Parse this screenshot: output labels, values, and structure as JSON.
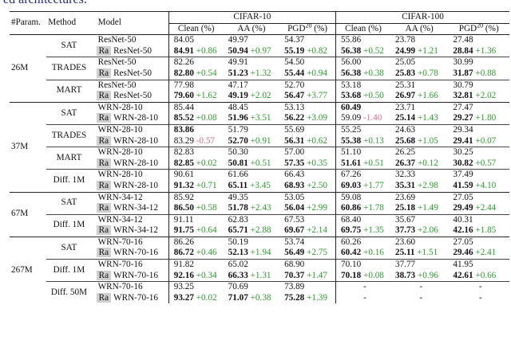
{
  "caption_fragment": "ed architectures.",
  "header": {
    "param": "#Param.",
    "method": "Method",
    "model": "Model",
    "datasets": [
      "CIFAR-10",
      "CIFAR-100"
    ],
    "metrics": [
      {
        "name": "Clean (%)"
      },
      {
        "name": "AA (%)"
      },
      {
        "name": "PGD",
        "sup": "20",
        "unit": "(%)"
      }
    ]
  },
  "ra_tag": "Ra",
  "groups": [
    {
      "param": "26M",
      "methods": [
        {
          "name": "SAT",
          "model": "ResNet-50",
          "base": [
            {
              "v": "84.05"
            },
            {
              "v": "49.97"
            },
            {
              "v": "54.37"
            },
            {
              "v": "55.86"
            },
            {
              "v": "23.78"
            },
            {
              "v": "27.48"
            }
          ],
          "ra": [
            {
              "v": "84.91",
              "d": "+0.86",
              "bold": true
            },
            {
              "v": "50.94",
              "d": "+0.97",
              "bold": true
            },
            {
              "v": "55.19",
              "d": "+0.82",
              "bold": true
            },
            {
              "v": "56.38",
              "d": "+0.52",
              "bold": true
            },
            {
              "v": "24.99",
              "d": "+1.21",
              "bold": true
            },
            {
              "v": "28.84",
              "d": "+1.36",
              "bold": true
            }
          ]
        },
        {
          "name": "TRADES",
          "model": "ResNet-50",
          "base": [
            {
              "v": "82.26"
            },
            {
              "v": "49.91"
            },
            {
              "v": "54.50"
            },
            {
              "v": "56.00"
            },
            {
              "v": "25.05"
            },
            {
              "v": "30.99"
            }
          ],
          "ra": [
            {
              "v": "82.80",
              "d": "+0.54",
              "bold": true
            },
            {
              "v": "51.23",
              "d": "+1.32",
              "bold": true
            },
            {
              "v": "55.44",
              "d": "+0.94",
              "bold": true
            },
            {
              "v": "56.38",
              "d": "+0.38",
              "bold": true
            },
            {
              "v": "25.83",
              "d": "+0.78",
              "bold": true
            },
            {
              "v": "31.87",
              "d": "+0.88",
              "bold": true
            }
          ]
        },
        {
          "name": "MART",
          "model": "ResNet-50",
          "base": [
            {
              "v": "77.98"
            },
            {
              "v": "47.17"
            },
            {
              "v": "52.70"
            },
            {
              "v": "53.18"
            },
            {
              "v": "25.31"
            },
            {
              "v": "30.79"
            }
          ],
          "ra": [
            {
              "v": "79.60",
              "d": "+1.62",
              "bold": true
            },
            {
              "v": "49.19",
              "d": "+2.02",
              "bold": true
            },
            {
              "v": "56.47",
              "d": "+3.77",
              "bold": true
            },
            {
              "v": "53.68",
              "d": "+0.50",
              "bold": true
            },
            {
              "v": "26.97",
              "d": "+1.66",
              "bold": true
            },
            {
              "v": "32.81",
              "d": "+2.02",
              "bold": true
            }
          ]
        }
      ]
    },
    {
      "param": "37M",
      "methods": [
        {
          "name": "SAT",
          "model": "WRN-28-10",
          "base": [
            {
              "v": "85.44"
            },
            {
              "v": "48.45"
            },
            {
              "v": "53.13"
            },
            {
              "v": "60.49",
              "bold": true
            },
            {
              "v": "23.71"
            },
            {
              "v": "27.47"
            }
          ],
          "ra": [
            {
              "v": "85.52",
              "d": "+0.08",
              "bold": true
            },
            {
              "v": "51.96",
              "d": "+3.51",
              "bold": true
            },
            {
              "v": "56.22",
              "d": "+3.09",
              "bold": true
            },
            {
              "v": "59.09",
              "d": "-1.40"
            },
            {
              "v": "25.14",
              "d": "+1.43",
              "bold": true
            },
            {
              "v": "29.27",
              "d": "+1.80",
              "bold": true
            }
          ]
        },
        {
          "name": "TRADES",
          "model": "WRN-28-10",
          "base": [
            {
              "v": "83.86",
              "bold": true
            },
            {
              "v": "51.79"
            },
            {
              "v": "55.69"
            },
            {
              "v": "55.25"
            },
            {
              "v": "24.63"
            },
            {
              "v": "29.34"
            }
          ],
          "ra": [
            {
              "v": "83.29",
              "d": "-0.57"
            },
            {
              "v": "52.70",
              "d": "+0.91",
              "bold": true
            },
            {
              "v": "56.31",
              "d": "+0.62",
              "bold": true
            },
            {
              "v": "55.38",
              "d": "+0.13",
              "bold": true
            },
            {
              "v": "25.68",
              "d": "+1.05",
              "bold": true
            },
            {
              "v": "29.41",
              "d": "+0.07",
              "bold": true
            }
          ]
        },
        {
          "name": "MART",
          "model": "WRN-28-10",
          "base": [
            {
              "v": "82.83"
            },
            {
              "v": "50.30"
            },
            {
              "v": "57.00"
            },
            {
              "v": "51.10"
            },
            {
              "v": "26.25"
            },
            {
              "v": "30.25"
            }
          ],
          "ra": [
            {
              "v": "82.85",
              "d": "+0.02",
              "bold": true
            },
            {
              "v": "50.81",
              "d": "+0.51",
              "bold": true
            },
            {
              "v": "57.35",
              "d": "+0.35",
              "bold": true
            },
            {
              "v": "51.61",
              "d": "+0.51",
              "bold": true
            },
            {
              "v": "26.37",
              "d": "+0.12",
              "bold": true
            },
            {
              "v": "30.82",
              "d": "+0.57",
              "bold": true
            }
          ]
        },
        {
          "name": "Diff. 1M",
          "model": "WRN-28-10",
          "base": [
            {
              "v": "90.61"
            },
            {
              "v": "61.66"
            },
            {
              "v": "66.43"
            },
            {
              "v": "67.26"
            },
            {
              "v": "32.33"
            },
            {
              "v": "37.49"
            }
          ],
          "ra": [
            {
              "v": "91.32",
              "d": "+0.71",
              "bold": true
            },
            {
              "v": "65.11",
              "d": "+3.45",
              "bold": true
            },
            {
              "v": "68.93",
              "d": "+2.50",
              "bold": true
            },
            {
              "v": "69.03",
              "d": "+1.77",
              "bold": true
            },
            {
              "v": "35.31",
              "d": "+2.98",
              "bold": true
            },
            {
              "v": "41.59",
              "d": "+4.10",
              "bold": true
            }
          ]
        }
      ]
    },
    {
      "param": "67M",
      "methods": [
        {
          "name": "SAT",
          "model": "WRN-34-12",
          "base": [
            {
              "v": "85.92"
            },
            {
              "v": "49.35"
            },
            {
              "v": "53.05"
            },
            {
              "v": "59.08"
            },
            {
              "v": "23.69"
            },
            {
              "v": "27.05"
            }
          ],
          "ra": [
            {
              "v": "86.50",
              "d": "+0.58",
              "bold": true
            },
            {
              "v": "51.78",
              "d": "+2.43",
              "bold": true
            },
            {
              "v": "56.04",
              "d": "+2.99",
              "bold": true
            },
            {
              "v": "60.86",
              "d": "+1.78",
              "bold": true
            },
            {
              "v": "25.18",
              "d": "+1.49",
              "bold": true
            },
            {
              "v": "29.49",
              "d": "+2.44",
              "bold": true
            }
          ]
        },
        {
          "name": "Diff. 1M",
          "model": "WRN-34-12",
          "base": [
            {
              "v": "91.11"
            },
            {
              "v": "62.83"
            },
            {
              "v": "67.53"
            },
            {
              "v": "68.40"
            },
            {
              "v": "35.67"
            },
            {
              "v": "40.31"
            }
          ],
          "ra": [
            {
              "v": "91.75",
              "d": "+0.64",
              "bold": true
            },
            {
              "v": "65.71",
              "d": "+2.88",
              "bold": true
            },
            {
              "v": "69.67",
              "d": "+2.14",
              "bold": true
            },
            {
              "v": "69.75",
              "d": "+1.35",
              "bold": true
            },
            {
              "v": "37.73",
              "d": "+2.06",
              "bold": true
            },
            {
              "v": "42.16",
              "d": "+1.85",
              "bold": true
            }
          ]
        }
      ]
    },
    {
      "param": "267M",
      "methods": [
        {
          "name": "SAT",
          "model": "WRN-70-16",
          "base": [
            {
              "v": "86.26"
            },
            {
              "v": "50.19"
            },
            {
              "v": "53.74"
            },
            {
              "v": "60.26"
            },
            {
              "v": "23.60"
            },
            {
              "v": "27.05"
            }
          ],
          "ra": [
            {
              "v": "86.72",
              "d": "+0.46",
              "bold": true
            },
            {
              "v": "52.13",
              "d": "+1.94",
              "bold": true
            },
            {
              "v": "56.49",
              "d": "+2.75",
              "bold": true
            },
            {
              "v": "60.42",
              "d": "+0.16",
              "bold": true
            },
            {
              "v": "25.11",
              "d": "+1.51",
              "bold": true
            },
            {
              "v": "29.46",
              "d": "+2.41",
              "bold": true
            }
          ]
        },
        {
          "name": "Diff. 1M",
          "model": "WRN-70-16",
          "base": [
            {
              "v": "91.82"
            },
            {
              "v": "65.02"
            },
            {
              "v": "68.90"
            },
            {
              "v": "70.10"
            },
            {
              "v": "37.77"
            },
            {
              "v": "41.95"
            }
          ],
          "ra": [
            {
              "v": "92.16",
              "d": "+0.34",
              "bold": true
            },
            {
              "v": "66.33",
              "d": "+1.31",
              "bold": true
            },
            {
              "v": "70.37",
              "d": "+1.47",
              "bold": true
            },
            {
              "v": "70.18",
              "d": "+0.08",
              "bold": true
            },
            {
              "v": "38.73",
              "d": "+0.96",
              "bold": true
            },
            {
              "v": "42.61",
              "d": "+0.66",
              "bold": true
            }
          ]
        },
        {
          "name": "Diff. 50M",
          "model": "WRN-70-16",
          "base": [
            {
              "v": "93.25"
            },
            {
              "v": "70.69"
            },
            {
              "v": "73.89"
            },
            {
              "v": "-"
            },
            {
              "v": "-"
            },
            {
              "v": "-"
            }
          ],
          "ra": [
            {
              "v": "93.27",
              "d": "+0.02",
              "bold": true
            },
            {
              "v": "71.07",
              "d": "+0.38",
              "bold": true
            },
            {
              "v": "75.28",
              "d": "+1.39",
              "bold": true
            },
            {
              "v": "-"
            },
            {
              "v": "-"
            },
            {
              "v": "-"
            }
          ]
        }
      ]
    }
  ]
}
